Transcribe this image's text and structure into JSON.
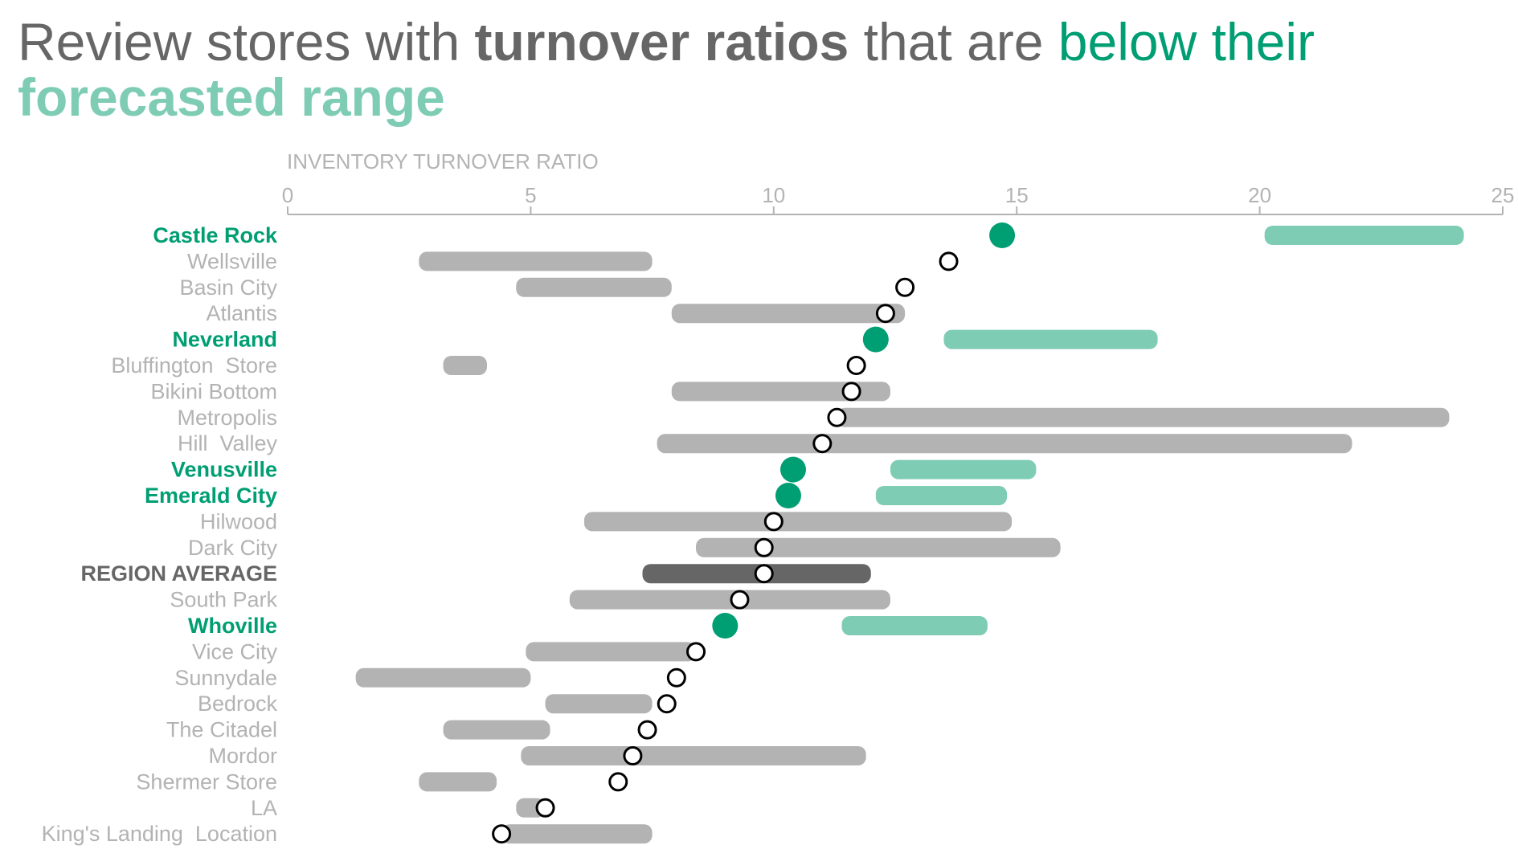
{
  "title": {
    "parts": [
      {
        "text": "Review stores with ",
        "weight": "normal",
        "color": "#666666"
      },
      {
        "text": "turnover ratios",
        "weight": "bold",
        "color": "#666666"
      },
      {
        "text": " that are ",
        "weight": "normal",
        "color": "#666666"
      },
      {
        "text": "below their",
        "weight": "normal",
        "color": "#009e73"
      }
    ],
    "line2": {
      "text": "forecasted range",
      "weight": "bold",
      "color": "#7fccb5"
    }
  },
  "colors": {
    "highlight_dot": "#009e73",
    "highlight_range": "#7fccb5",
    "normal_range": "#b3b3b3",
    "average_range": "#666666",
    "normal_label": "#b3b3b3",
    "average_label": "#666666",
    "axis": "#b3b3b3"
  },
  "chart_data": {
    "type": "range-dot",
    "xlabel": "INVENTORY TURNOVER RATIO",
    "xlim": [
      0,
      25
    ],
    "xticks": [
      0,
      5,
      10,
      15,
      20,
      25
    ],
    "rows": [
      {
        "name": "Castle Rock",
        "range": [
          20.1,
          24.2
        ],
        "value": 14.7,
        "status": "below"
      },
      {
        "name": "Wellsville",
        "range": [
          2.7,
          7.5
        ],
        "value": 13.6,
        "status": "normal"
      },
      {
        "name": "Basin City",
        "range": [
          4.7,
          7.9
        ],
        "value": 12.7,
        "status": "normal"
      },
      {
        "name": "Atlantis",
        "range": [
          7.9,
          12.7
        ],
        "value": 12.3,
        "status": "normal"
      },
      {
        "name": "Neverland",
        "range": [
          13.5,
          17.9
        ],
        "value": 12.1,
        "status": "below"
      },
      {
        "name": "Bluffington  Store",
        "range": [
          3.2,
          4.1
        ],
        "value": 11.7,
        "status": "normal"
      },
      {
        "name": "Bikini Bottom",
        "range": [
          7.9,
          12.4
        ],
        "value": 11.6,
        "status": "normal"
      },
      {
        "name": "Metropolis",
        "range": [
          11.3,
          23.9
        ],
        "value": 11.3,
        "status": "normal"
      },
      {
        "name": "Hill  Valley",
        "range": [
          7.6,
          21.9
        ],
        "value": 11.0,
        "status": "normal"
      },
      {
        "name": "Venusville",
        "range": [
          12.4,
          15.4
        ],
        "value": 10.4,
        "status": "below"
      },
      {
        "name": "Emerald City",
        "range": [
          12.1,
          14.8
        ],
        "value": 10.3,
        "status": "below"
      },
      {
        "name": "Hilwood",
        "range": [
          6.1,
          14.9
        ],
        "value": 10.0,
        "status": "normal"
      },
      {
        "name": "Dark City",
        "range": [
          8.4,
          15.9
        ],
        "value": 9.8,
        "status": "normal"
      },
      {
        "name": "REGION AVERAGE",
        "range": [
          7.3,
          12.0
        ],
        "value": 9.8,
        "status": "average"
      },
      {
        "name": "South Park",
        "range": [
          5.8,
          12.4
        ],
        "value": 9.3,
        "status": "normal"
      },
      {
        "name": "Whoville",
        "range": [
          11.4,
          14.4
        ],
        "value": 9.0,
        "status": "below"
      },
      {
        "name": "Vice City",
        "range": [
          4.9,
          8.4
        ],
        "value": 8.4,
        "status": "normal"
      },
      {
        "name": "Sunnydale",
        "range": [
          1.4,
          5.0
        ],
        "value": 8.0,
        "status": "normal"
      },
      {
        "name": "Bedrock",
        "range": [
          5.3,
          7.5
        ],
        "value": 7.8,
        "status": "normal"
      },
      {
        "name": "The Citadel",
        "range": [
          3.2,
          5.4
        ],
        "value": 7.4,
        "status": "normal"
      },
      {
        "name": "Mordor",
        "range": [
          4.8,
          11.9
        ],
        "value": 7.1,
        "status": "normal"
      },
      {
        "name": "Shermer Store",
        "range": [
          2.7,
          4.3
        ],
        "value": 6.8,
        "status": "normal"
      },
      {
        "name": "LA",
        "range": [
          4.7,
          5.3
        ],
        "value": 5.3,
        "status": "normal"
      },
      {
        "name": "King's Landing  Location",
        "range": [
          4.4,
          7.5
        ],
        "value": 4.4,
        "status": "normal"
      }
    ]
  }
}
